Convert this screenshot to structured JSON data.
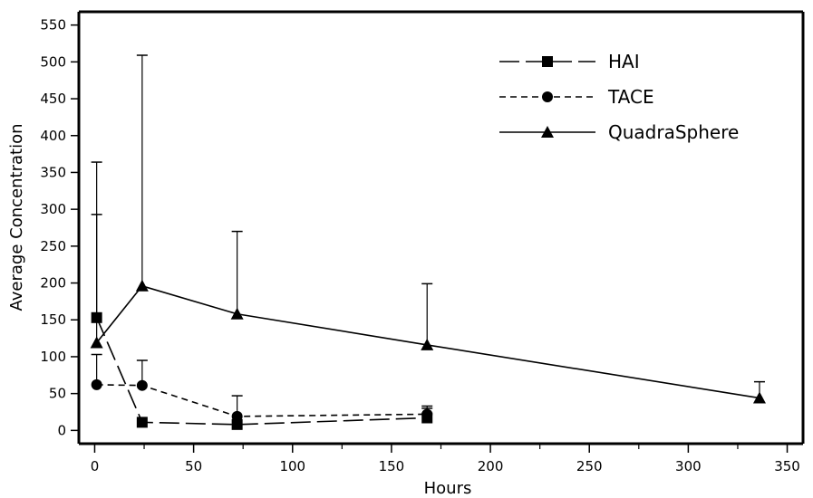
{
  "chart_data": {
    "type": "line",
    "xlabel": "Hours",
    "ylabel": "Average Concentration",
    "xlim": [
      -8,
      358
    ],
    "ylim": [
      -18,
      568
    ],
    "xticks": [
      0,
      50,
      100,
      150,
      200,
      250,
      300,
      350
    ],
    "yticks": [
      0,
      50,
      100,
      150,
      200,
      250,
      300,
      350,
      400,
      450,
      500,
      550
    ],
    "xminor": [
      25,
      75,
      125,
      175,
      225,
      275,
      325
    ],
    "grid": false,
    "legend_position": "top-right",
    "series": [
      {
        "name": "HAI",
        "marker": "square",
        "line": "long-dash",
        "x": [
          1,
          24,
          72,
          168
        ],
        "y": [
          153,
          11,
          8,
          17
        ],
        "err_upper": [
          293,
          null,
          null,
          33
        ]
      },
      {
        "name": "TACE",
        "marker": "circle",
        "line": "short-dash",
        "x": [
          1,
          24,
          72,
          168
        ],
        "y": [
          62,
          61,
          19,
          22
        ],
        "err_upper": [
          103,
          95,
          47,
          30
        ]
      },
      {
        "name": "QuadraSphere",
        "marker": "triangle",
        "line": "solid",
        "x": [
          1,
          24,
          72,
          168,
          336
        ],
        "y": [
          119,
          196,
          158,
          116,
          44
        ],
        "err_upper": [
          364,
          509,
          270,
          199,
          66
        ]
      }
    ]
  }
}
